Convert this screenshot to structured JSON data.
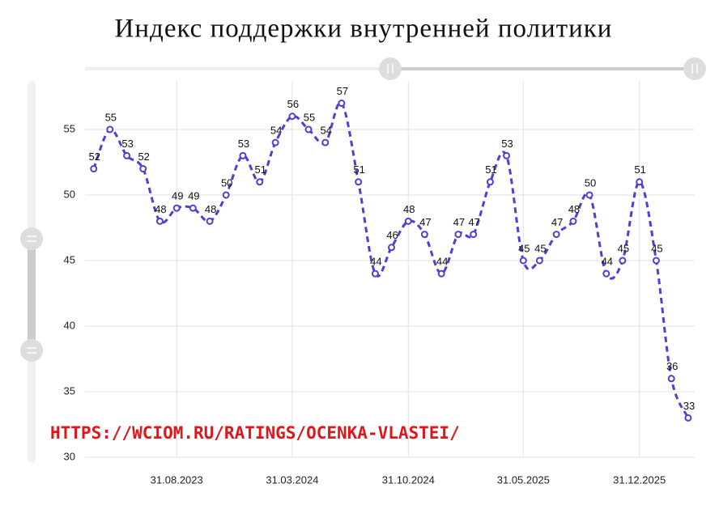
{
  "chart_data": {
    "type": "line",
    "title": "Индекс поддержки внутренней политики",
    "annotation": "HTTPS://WCIOM.RU/RATINGS/OCENKA-VLASTEI/",
    "x": [
      "31.03.2023",
      "30.04.2023",
      "31.05.2023",
      "30.06.2023",
      "31.07.2023",
      "31.08.2023",
      "30.09.2023",
      "31.10.2023",
      "30.11.2023",
      "31.12.2023",
      "31.01.2024",
      "29.02.2024",
      "31.03.2024",
      "30.04.2024",
      "31.05.2024",
      "30.06.2024",
      "31.07.2024",
      "31.08.2024",
      "30.09.2024",
      "31.10.2024",
      "30.11.2024",
      "31.12.2024",
      "31.01.2025",
      "28.02.2025",
      "31.03.2025",
      "30.04.2025",
      "31.05.2025",
      "30.06.2025",
      "31.07.2025",
      "31.08.2025",
      "30.09.2025",
      "31.10.2025",
      "30.11.2025",
      "31.12.2025",
      "31.01.2026",
      "28.02.2026",
      "31.03.2026"
    ],
    "series": [
      {
        "name": "Индекс поддержки внутренней политики",
        "color": "#4f3fd6",
        "values": [
          52,
          55,
          53,
          52,
          48,
          49,
          49,
          48,
          50,
          53,
          51,
          54,
          56,
          55,
          54,
          57,
          51,
          44,
          46,
          48,
          47,
          44,
          47,
          47,
          51,
          53,
          45,
          45,
          47,
          48,
          50,
          44,
          45,
          51,
          45,
          36,
          33
        ]
      }
    ],
    "xlim": [
      "15.03.2023",
      "12.04.2026"
    ],
    "xticks": [
      "31.08.2023",
      "31.03.2024",
      "31.10.2024",
      "31.05.2025",
      "31.12.2025"
    ],
    "ylim": [
      30,
      58.7
    ],
    "yticks": [
      30,
      35,
      40,
      45,
      50,
      55
    ],
    "grid": true
  }
}
